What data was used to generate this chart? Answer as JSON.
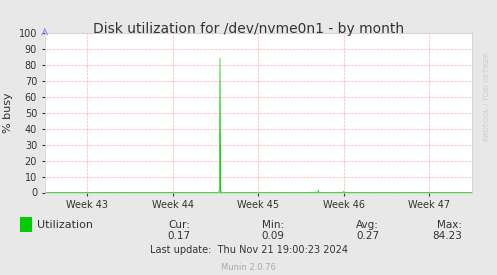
{
  "title": "Disk utilization for /dev/nvme0n1 - by month",
  "ylabel": "% busy",
  "ylim": [
    0,
    100
  ],
  "yticks": [
    0,
    10,
    20,
    30,
    40,
    50,
    60,
    70,
    80,
    90,
    100
  ],
  "xtick_labels": [
    "Week 43",
    "Week 44",
    "Week 45",
    "Week 46",
    "Week 47"
  ],
  "bg_color": "#e8e8e8",
  "plot_bg_color": "#ffffff",
  "grid_color": "#ff9999",
  "line_color": "#00cc00",
  "fill_color": "#00cc00",
  "title_color": "#333333",
  "legend_label": "Utilization",
  "cur": "0.17",
  "min": "0.09",
  "avg": "0.27",
  "max": "84.23",
  "last_update": "Last update:  Thu Nov 21 19:00:23 2024",
  "munin_version": "Munin 2.0.76",
  "watermark": "RRDTOOL / TOBI OETIKER",
  "arrow_color": "#9999ff"
}
